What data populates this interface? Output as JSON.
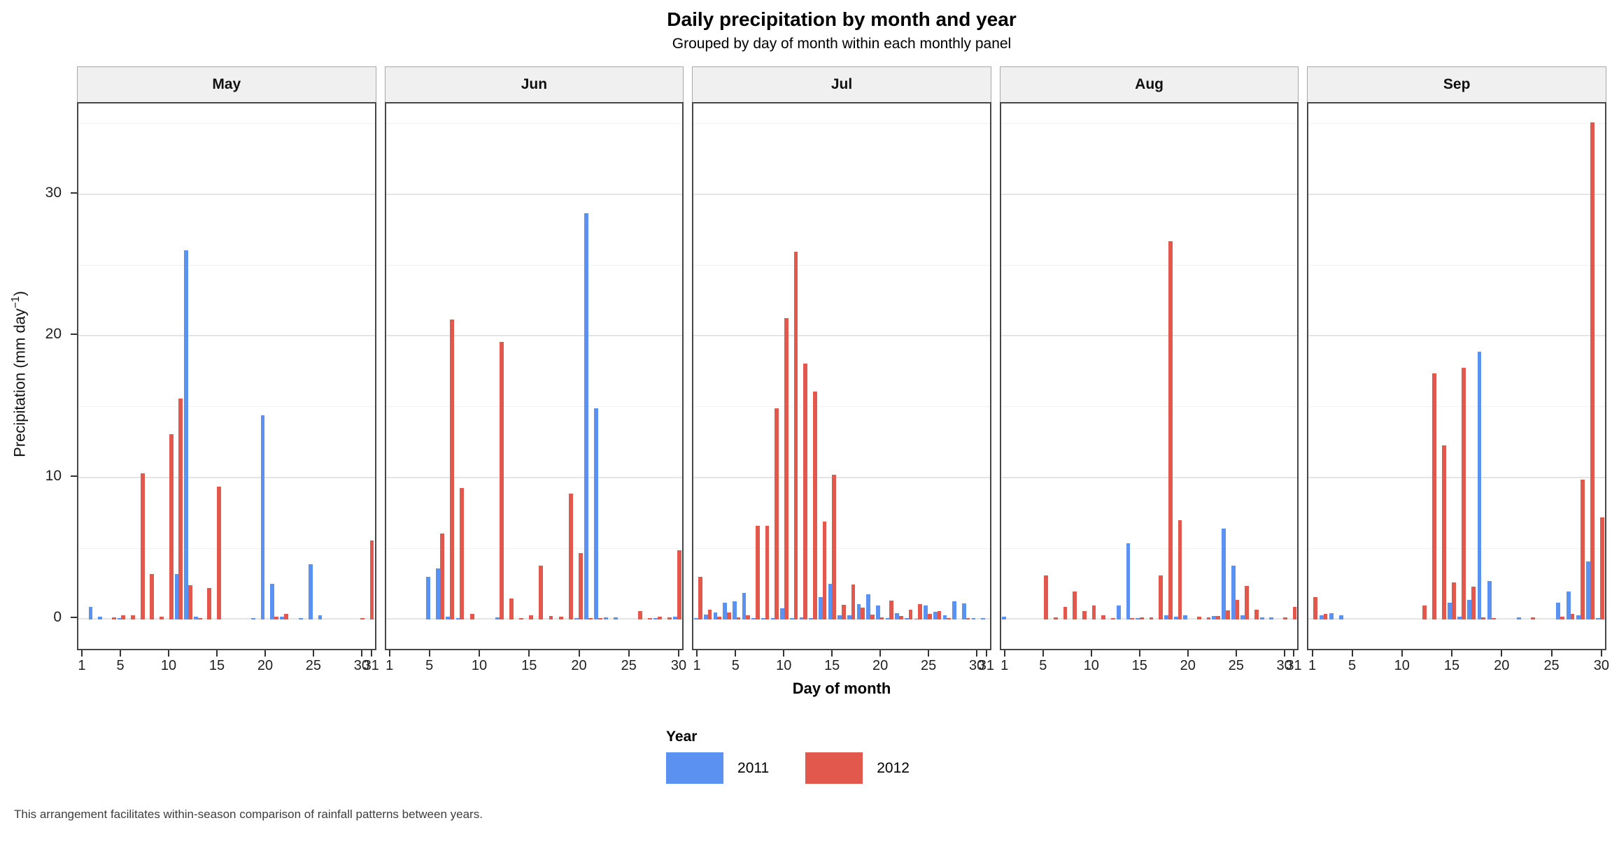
{
  "title": "Daily precipitation by month and year",
  "subtitle": "Grouped by day of month within each monthly panel",
  "footer": "This arrangement facilitates within-season comparison of rainfall patterns between years.",
  "axes": {
    "x_title": "Day of month",
    "y_title_prefix": "Precipitation (mm day",
    "y_title_sup": "−1",
    "y_title_suffix": ")",
    "y_ticks": [
      0,
      10,
      20,
      30
    ],
    "y_minor": [
      5,
      15,
      25,
      35
    ],
    "y_max": 36.3
  },
  "legend": {
    "title": "Year",
    "entries": [
      {
        "label": "2011",
        "color": "#5B91F0"
      },
      {
        "label": "2012",
        "color": "#E2584C"
      }
    ]
  },
  "colors": {
    "bar_2011": "#5B91F0",
    "bar_2012": "#E2584C",
    "strip_bg": "#F0F0F0",
    "panel_border": "#474747",
    "gridline": "#E4E4E4",
    "footer_text": "#3D3D3D"
  },
  "chart_data": {
    "type": "bar",
    "mode": "dodged",
    "title": "Daily precipitation by month and year",
    "subtitle": "Grouped by day of month within each monthly panel",
    "xlabel": "Day of month",
    "ylabel": "Precipitation (mm day−1)",
    "ylim": [
      0,
      36.3
    ],
    "grid": true,
    "legend_position": "bottom",
    "facets": [
      {
        "month": "May",
        "days": 31,
        "x_ticks": [
          1,
          5,
          10,
          15,
          20,
          25,
          30,
          31
        ],
        "series": [
          {
            "name": "2011",
            "values": [
              0,
              0.9,
              0.2,
              0,
              0.1,
              0,
              0,
              0,
              0,
              0,
              3.2,
              26.1,
              0.2,
              0,
              0,
              0,
              0,
              0,
              0.1,
              14.4,
              2.5,
              0.2,
              0,
              0.1,
              3.9,
              0.3,
              0,
              0,
              0,
              0,
              0
            ]
          },
          {
            "name": "2012",
            "values": [
              0,
              0,
              0,
              0.15,
              0.3,
              0.3,
              10.3,
              3.2,
              0.2,
              13.1,
              15.6,
              2.4,
              0.1,
              2.2,
              9.4,
              0,
              0,
              0,
              0,
              0,
              0.2,
              0.4,
              0,
              0,
              0,
              0,
              0,
              0,
              0,
              0.1,
              5.6
            ]
          }
        ]
      },
      {
        "month": "Jun",
        "days": 30,
        "x_ticks": [
          1,
          5,
          10,
          15,
          20,
          25,
          30
        ],
        "series": [
          {
            "name": "2011",
            "values": [
              0,
              0,
              0,
              0,
              3.0,
              3.6,
              0.2,
              0.1,
              0,
              0,
              0,
              0.15,
              0,
              0,
              0,
              0,
              0,
              0,
              0,
              0.1,
              28.7,
              14.9,
              0.15,
              0.15,
              0,
              0,
              0,
              0.1,
              0,
              0.2
            ]
          },
          {
            "name": "2012",
            "values": [
              0,
              0,
              0,
              0,
              0,
              6.1,
              21.2,
              9.3,
              0.4,
              0,
              0,
              19.6,
              1.5,
              0.1,
              0.3,
              3.8,
              0.25,
              0.2,
              8.9,
              4.7,
              0.1,
              0.1,
              0,
              0,
              0,
              0.6,
              0.1,
              0.2,
              0.15,
              4.9
            ]
          }
        ]
      },
      {
        "month": "Jul",
        "days": 31,
        "x_ticks": [
          1,
          5,
          10,
          15,
          20,
          25,
          30,
          31
        ],
        "series": [
          {
            "name": "2011",
            "values": [
              0.1,
              0.35,
              0.5,
              1.2,
              1.3,
              1.9,
              0.1,
              0.1,
              0.1,
              0.8,
              0.1,
              0.15,
              0.1,
              1.6,
              2.5,
              0.3,
              0.3,
              1.1,
              1.8,
              1.0,
              0.1,
              0.45,
              0.1,
              0.05,
              1.0,
              0.55,
              0.3,
              1.3,
              1.15,
              0.1,
              0.1
            ]
          },
          {
            "name": "2012",
            "values": [
              3.0,
              0.7,
              0.2,
              0.5,
              0.15,
              0.3,
              6.6,
              6.6,
              14.9,
              21.3,
              26.0,
              18.1,
              16.1,
              6.9,
              10.2,
              1.05,
              2.45,
              0.85,
              0.35,
              0.15,
              1.35,
              0.25,
              0.7,
              1.1,
              0.4,
              0.6,
              0.1,
              0,
              0.1,
              0,
              0
            ]
          }
        ]
      },
      {
        "month": "Aug",
        "days": 31,
        "x_ticks": [
          1,
          5,
          10,
          15,
          20,
          25,
          30,
          31
        ],
        "series": [
          {
            "name": "2011",
            "values": [
              0.2,
              0,
              0,
              0,
              0,
              0,
              0,
              0,
              0,
              0,
              0,
              0,
              1.0,
              5.4,
              0.1,
              0,
              0,
              0.3,
              0.2,
              0.3,
              0,
              0,
              0.25,
              6.4,
              3.8,
              0.3,
              0,
              0.15,
              0.15,
              0,
              0
            ]
          },
          {
            "name": "2012",
            "values": [
              0,
              0,
              0,
              0,
              3.1,
              0.15,
              0.9,
              2.0,
              0.6,
              1.0,
              0.3,
              0.1,
              0,
              0.1,
              0.15,
              0.15,
              3.1,
              26.7,
              7.0,
              0,
              0.2,
              0.15,
              0.25,
              0.65,
              1.4,
              2.35,
              0.7,
              0,
              0,
              0.15,
              0.9
            ]
          }
        ]
      },
      {
        "month": "Sep",
        "days": 30,
        "x_ticks": [
          1,
          5,
          10,
          15,
          20,
          25,
          30
        ],
        "series": [
          {
            "name": "2011",
            "values": [
              0,
              0.3,
              0.45,
              0.3,
              0,
              0,
              0,
              0,
              0,
              0,
              0,
              0,
              0,
              0,
              1.2,
              0.2,
              1.4,
              18.9,
              2.7,
              0,
              0,
              0.15,
              0,
              0,
              0,
              1.2,
              2.0,
              0.3,
              4.1,
              0.1
            ]
          },
          {
            "name": "2012",
            "values": [
              1.6,
              0.4,
              0,
              0,
              0,
              0,
              0,
              0,
              0,
              0,
              0,
              1.0,
              17.4,
              12.3,
              2.6,
              17.8,
              2.3,
              0.15,
              0.1,
              0,
              0,
              0,
              0.15,
              0,
              0,
              0.2,
              0.4,
              9.9,
              35.1,
              7.2
            ]
          }
        ]
      }
    ]
  }
}
